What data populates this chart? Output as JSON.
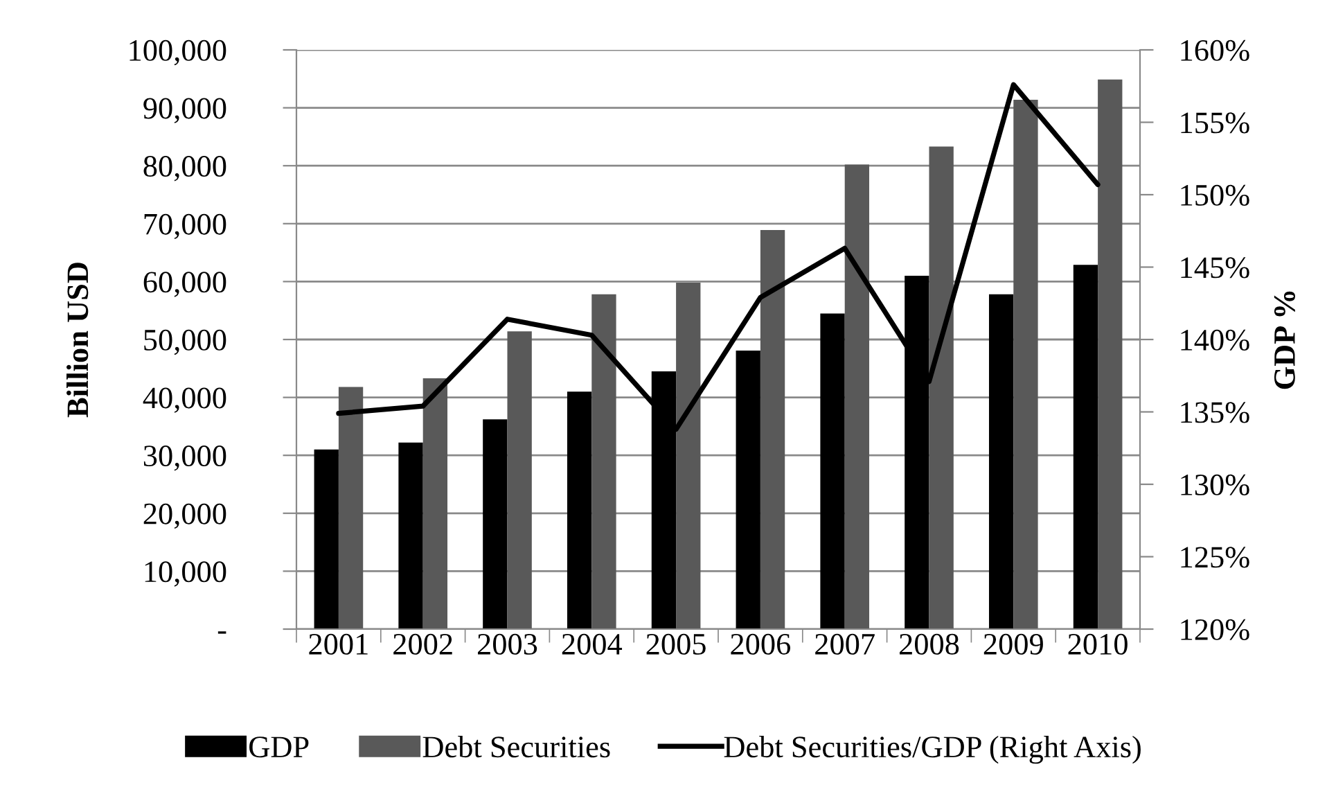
{
  "chart_data": {
    "type": "bar",
    "categories": [
      "2001",
      "2002",
      "2003",
      "2004",
      "2005",
      "2006",
      "2007",
      "2008",
      "2009",
      "2010"
    ],
    "series": [
      {
        "name": "GDP",
        "color": "#000000",
        "values": [
          31000,
          32200,
          36200,
          41000,
          44500,
          48100,
          54500,
          61000,
          57800,
          62900
        ]
      },
      {
        "name": "Debt Securities",
        "color": "#595959",
        "values": [
          41800,
          43300,
          51400,
          57800,
          59800,
          68900,
          80200,
          83300,
          91400,
          94900
        ]
      },
      {
        "name": "Debt Securities/GDP (Right Axis)",
        "type": "line",
        "axis": "y2",
        "color": "#000000",
        "values": [
          134.9,
          135.4,
          141.4,
          140.3,
          133.8,
          142.9,
          146.3,
          137.1,
          157.6,
          150.7
        ]
      }
    ],
    "ylabel": "Billion USD",
    "y2label": "GDP %",
    "ylim": [
      0,
      100000
    ],
    "yticks": [
      {
        "value": 0,
        "label": "-"
      },
      {
        "value": 10000,
        "label": "10,000"
      },
      {
        "value": 20000,
        "label": "20,000"
      },
      {
        "value": 30000,
        "label": "30,000"
      },
      {
        "value": 40000,
        "label": "40,000"
      },
      {
        "value": 50000,
        "label": "50,000"
      },
      {
        "value": 60000,
        "label": "60,000"
      },
      {
        "value": 70000,
        "label": "70,000"
      },
      {
        "value": 80000,
        "label": "80,000"
      },
      {
        "value": 90000,
        "label": "90,000"
      },
      {
        "value": 100000,
        "label": "100,000"
      }
    ],
    "y2lim": [
      120,
      160
    ],
    "y2ticks": [
      {
        "value": 120,
        "label": "120%"
      },
      {
        "value": 125,
        "label": "125%"
      },
      {
        "value": 130,
        "label": "130%"
      },
      {
        "value": 135,
        "label": "135%"
      },
      {
        "value": 140,
        "label": "140%"
      },
      {
        "value": 145,
        "label": "145%"
      },
      {
        "value": 150,
        "label": "150%"
      },
      {
        "value": 155,
        "label": "155%"
      },
      {
        "value": 160,
        "label": "160%"
      }
    ],
    "grid": "y",
    "legend": "bottom"
  }
}
